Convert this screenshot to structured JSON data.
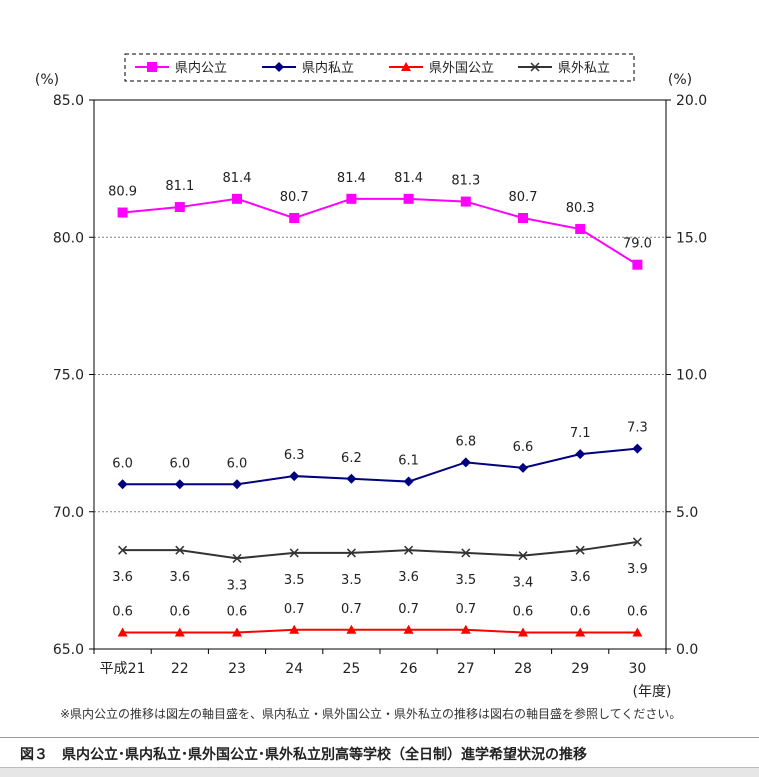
{
  "chart_data": {
    "type": "line",
    "categories": [
      "平成21",
      "22",
      "23",
      "24",
      "25",
      "26",
      "27",
      "28",
      "29",
      "30"
    ],
    "x_unit": "(年度)",
    "left_axis": {
      "unit": "(%)",
      "min": 65,
      "max": 85,
      "ticks": [
        "65.0",
        "70.0",
        "75.0",
        "80.0",
        "85.0"
      ]
    },
    "right_axis": {
      "unit": "(%)",
      "min": 0,
      "max": 20,
      "ticks": [
        "0.0",
        "5.0",
        "10.0",
        "15.0",
        "20.0"
      ]
    },
    "grid": true,
    "legend_position": "top-center",
    "series": [
      {
        "name": "県内公立",
        "axis": "left",
        "color": "#ff00ff",
        "marker": "square",
        "values": [
          80.9,
          81.1,
          81.4,
          80.7,
          81.4,
          81.4,
          81.3,
          80.7,
          80.3,
          79.0
        ],
        "labels": [
          "80.9",
          "81.1",
          "81.4",
          "80.7",
          "81.4",
          "81.4",
          "81.3",
          "80.7",
          "80.3",
          "79.0"
        ],
        "label_position": "above"
      },
      {
        "name": "県内私立",
        "axis": "right",
        "color": "#000080",
        "marker": "diamond",
        "values": [
          6.0,
          6.0,
          6.0,
          6.3,
          6.2,
          6.1,
          6.8,
          6.6,
          7.1,
          7.3
        ],
        "labels": [
          "6.0",
          "6.0",
          "6.0",
          "6.3",
          "6.2",
          "6.1",
          "6.8",
          "6.6",
          "7.1",
          "7.3"
        ],
        "label_position": "above"
      },
      {
        "name": "県外国公立",
        "axis": "right",
        "color": "#ff0000",
        "marker": "triangle",
        "values": [
          0.6,
          0.6,
          0.6,
          0.7,
          0.7,
          0.7,
          0.7,
          0.6,
          0.6,
          0.6
        ],
        "labels": [
          "0.6",
          "0.6",
          "0.6",
          "0.7",
          "0.7",
          "0.7",
          "0.7",
          "0.6",
          "0.6",
          "0.6"
        ],
        "label_position": "above"
      },
      {
        "name": "県外私立",
        "axis": "right",
        "color": "#333333",
        "marker": "x",
        "values": [
          3.6,
          3.6,
          3.3,
          3.5,
          3.5,
          3.6,
          3.5,
          3.4,
          3.6,
          3.9
        ],
        "labels": [
          "3.6",
          "3.6",
          "3.3",
          "3.5",
          "3.5",
          "3.6",
          "3.5",
          "3.4",
          "3.6",
          "3.9"
        ],
        "label_position": "below"
      }
    ]
  },
  "note": "※県内公立の推移は図左の軸目盛を、県内私立・県外国公立・県外私立の推移は図右の軸目盛を参照してください。",
  "caption": "図３　県内公立･県内私立･県外国公立･県外私立別高等学校（全日制）進学希望状況の推移"
}
